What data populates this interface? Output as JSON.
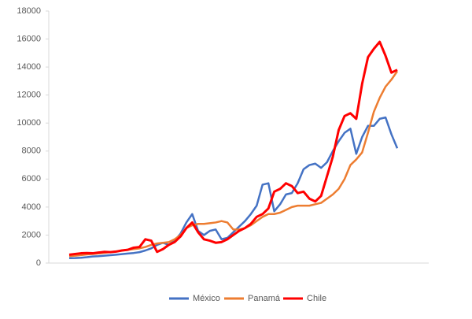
{
  "chart_data": {
    "type": "line",
    "categories": [
      null,
      null,
      null,
      null,
      null,
      null,
      null,
      null,
      null,
      null,
      null,
      null,
      null,
      null,
      null,
      null,
      null,
      null,
      null,
      null,
      null,
      null,
      null,
      null,
      null,
      null,
      null,
      null,
      null,
      null,
      null,
      null,
      null,
      null,
      null,
      null,
      null,
      null,
      null,
      null,
      null,
      null,
      null,
      null,
      null,
      null,
      null,
      null,
      null,
      null,
      null,
      null,
      null,
      null,
      null,
      null,
      null
    ],
    "series": [
      {
        "name": "México",
        "color": "#4472c4",
        "values": [
          350,
          360,
          380,
          420,
          470,
          490,
          530,
          560,
          600,
          640,
          680,
          720,
          780,
          900,
          1050,
          1300,
          1450,
          1300,
          1600,
          2100,
          2900,
          3500,
          2300,
          2000,
          2300,
          2400,
          1700,
          1800,
          2200,
          2600,
          3000,
          3500,
          4100,
          5600,
          5700,
          3700,
          4200,
          4900,
          5000,
          5700,
          6700,
          7000,
          7100,
          6800,
          7200,
          8000,
          8700,
          9300,
          9600,
          7800,
          9000,
          9800,
          9800,
          10300,
          10400,
          9200,
          8200
        ]
      },
      {
        "name": "Panamá",
        "color": "#ed7d31",
        "values": [
          500,
          530,
          570,
          620,
          650,
          690,
          730,
          780,
          830,
          900,
          950,
          1000,
          1050,
          1150,
          1300,
          1400,
          1450,
          1500,
          1700,
          2000,
          2500,
          2700,
          2800,
          2800,
          2850,
          2900,
          3000,
          2900,
          2400,
          2400,
          2500,
          2700,
          3000,
          3300,
          3500,
          3500,
          3600,
          3800,
          4000,
          4100,
          4100,
          4100,
          4200,
          4300,
          4600,
          4900,
          5300,
          6000,
          7000,
          7400,
          7900,
          9300,
          10800,
          11800,
          12600,
          13100,
          13700
        ]
      },
      {
        "name": "Chile",
        "color": "#ff0000",
        "values": [
          600,
          650,
          700,
          720,
          700,
          750,
          800,
          780,
          820,
          900,
          950,
          1100,
          1150,
          1700,
          1600,
          800,
          1000,
          1300,
          1500,
          1900,
          2500,
          2900,
          2200,
          1700,
          1600,
          1450,
          1500,
          1700,
          2000,
          2300,
          2500,
          2800,
          3300,
          3500,
          3900,
          5100,
          5300,
          5700,
          5500,
          5000,
          5100,
          4600,
          4400,
          4800,
          6200,
          7600,
          9500,
          10500,
          10700,
          10300,
          12800,
          14700,
          15300,
          15800,
          14800,
          13600,
          13800
        ]
      }
    ],
    "ylim": [
      0,
      18000
    ],
    "yticks": [
      0,
      2000,
      4000,
      6000,
      8000,
      10000,
      12000,
      14000,
      16000,
      18000
    ],
    "grid": false,
    "legend": "bottom"
  }
}
